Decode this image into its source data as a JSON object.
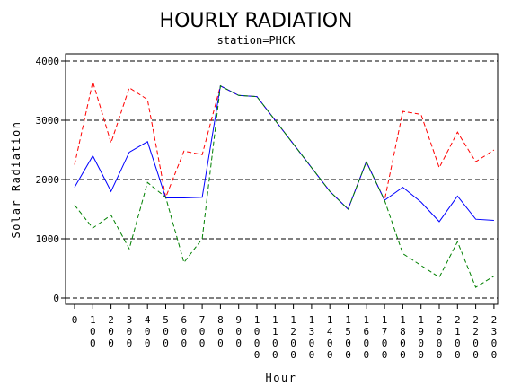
{
  "chart_data": {
    "type": "line",
    "title": "HOURLY RADIATION",
    "subtitle": "station=PHCK",
    "xlabel": "Hour",
    "ylabel": "Solar Radiation",
    "x": [
      0,
      100,
      200,
      300,
      400,
      500,
      600,
      700,
      800,
      900,
      1000,
      1100,
      1200,
      1300,
      1400,
      1500,
      1600,
      1700,
      1800,
      1900,
      2000,
      2100,
      2200,
      2300
    ],
    "xticks": [
      "0",
      "100",
      "200",
      "300",
      "400",
      "500",
      "600",
      "700",
      "800",
      "900",
      "1000",
      "1100",
      "1200",
      "1300",
      "1400",
      "1500",
      "1600",
      "1700",
      "1800",
      "1900",
      "2000",
      "2100",
      "2200",
      "2300"
    ],
    "ylim": [
      0,
      4000
    ],
    "yticks": [
      0,
      1000,
      2000,
      3000,
      4000
    ],
    "grid": "horizontal dashed",
    "series": [
      {
        "color": "#ff0000",
        "dash": "dashed",
        "values": [
          2250,
          3650,
          2620,
          3550,
          3350,
          1700,
          2480,
          2420,
          3580,
          3420,
          3400,
          3000,
          2600,
          2200,
          1800,
          1500,
          2300,
          1650,
          3150,
          3100,
          2200,
          2800,
          2300,
          2500
        ]
      },
      {
        "color": "#0000ff",
        "dash": "solid",
        "values": [
          1870,
          2400,
          1800,
          2460,
          2640,
          1690,
          1690,
          1700,
          3580,
          3420,
          3400,
          3000,
          2600,
          2200,
          1800,
          1500,
          2300,
          1650,
          1870,
          1620,
          1290,
          1720,
          1330,
          1310
        ]
      },
      {
        "color": "#008000",
        "dash": "dashed",
        "values": [
          1570,
          1180,
          1400,
          830,
          1950,
          1700,
          600,
          1000,
          3580,
          3420,
          3400,
          3000,
          2600,
          2200,
          1800,
          1500,
          2300,
          1650,
          750,
          550,
          350,
          950,
          180,
          370
        ]
      }
    ]
  }
}
